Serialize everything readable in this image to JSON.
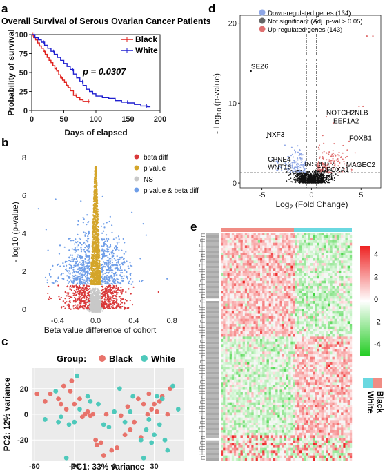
{
  "panels": {
    "a": {
      "label": "a",
      "chart_data": {
        "type": "line",
        "title": "Overall Survival of Serous Ovarian Cancer Patients",
        "xlabel": "Days of elapsed",
        "ylabel": "Probability of survival",
        "xlim": [
          0,
          200
        ],
        "ylim": [
          0,
          100
        ],
        "xticks": [
          "0",
          "50",
          "100",
          "150",
          "200"
        ],
        "yticks": [
          "0",
          "25",
          "50",
          "75",
          "100"
        ],
        "legend_position": "top-right",
        "annotation": "p = 0.0307",
        "series": [
          {
            "name": "Black",
            "color": "#e0221e",
            "x": [
              0,
              3,
              6,
              9,
              12,
              15,
              18,
              21,
              24,
              27,
              30,
              33,
              36,
              39,
              42,
              45,
              48,
              51,
              54,
              57,
              60,
              65,
              70,
              75,
              80,
              90
            ],
            "y": [
              100,
              96,
              93,
              89,
              85,
              82,
              78,
              74,
              70,
              66,
              63,
              59,
              55,
              52,
              47,
              43,
              40,
              37,
              33,
              30,
              26,
              20,
              17,
              14,
              12,
              12
            ]
          },
          {
            "name": "White",
            "color": "#1f1fd0",
            "x": [
              0,
              5,
              10,
              15,
              20,
              25,
              30,
              35,
              40,
              45,
              50,
              55,
              60,
              65,
              70,
              75,
              80,
              85,
              90,
              95,
              100,
              110,
              120,
              130,
              140,
              150,
              160,
              170,
              180,
              185
            ],
            "y": [
              100,
              96,
              93,
              90,
              86,
              82,
              78,
              74,
              70,
              66,
              62,
              58,
              54,
              48,
              43,
              38,
              33,
              28,
              25,
              22,
              19,
              17,
              16,
              13,
              11,
              10,
              8,
              6,
              5,
              5
            ]
          }
        ]
      }
    },
    "b": {
      "label": "b",
      "chart_data": {
        "type": "scatter",
        "xlabel": "Beta value difference of cohort",
        "ylabel": "- log10 (p-value)",
        "xlim": [
          -0.7,
          0.85
        ],
        "ylim": [
          -0.3,
          8
        ],
        "xticks": [
          -0.4,
          0.0,
          0.4,
          0.8
        ],
        "yticks": [
          0,
          2,
          4,
          6,
          8
        ],
        "legend_position": "top-right",
        "series": [
          {
            "name": "beta diff",
            "color": "#d9383a"
          },
          {
            "name": "p value",
            "color": "#d4a52a"
          },
          {
            "name": "NS",
            "color": "#c8c8c8"
          },
          {
            "name": "p value & beta diff",
            "color": "#6f9ee8"
          }
        ]
      }
    },
    "c": {
      "label": "c",
      "chart_data": {
        "type": "scatter",
        "xlabel": "PC1: 33% variance",
        "ylabel": "PC2: 12% variance",
        "xlim": [
          -62,
          52
        ],
        "ylim": [
          -36,
          36
        ],
        "xticks": [
          -60,
          -30,
          0,
          30
        ],
        "yticks": [
          -20,
          0,
          20
        ],
        "grid": true,
        "legend_title": "Group:",
        "legend_position": "top",
        "series": [
          {
            "name": "Black",
            "color": "#e8736b",
            "points": [
              [
                -58,
                16
              ],
              [
                -52,
                10
              ],
              [
                -48,
                16
              ],
              [
                -42,
                12
              ],
              [
                -38,
                22
              ],
              [
                -36,
                4
              ],
              [
                -33,
                18
              ],
              [
                -32,
                26
              ],
              [
                -30,
                8
              ],
              [
                -26,
                12
              ],
              [
                -22,
                0
              ],
              [
                -20,
                2
              ],
              [
                -18,
                -1
              ],
              [
                -16,
                0
              ],
              [
                -14,
                -20
              ],
              [
                -13,
                -24
              ],
              [
                -10,
                -22
              ],
              [
                -8,
                -32
              ],
              [
                -2,
                -28
              ],
              [
                2,
                -26
              ],
              [
                5,
                -1
              ],
              [
                10,
                6
              ],
              [
                12,
                -12
              ],
              [
                15,
                -6
              ],
              [
                18,
                12
              ],
              [
                22,
                8
              ],
              [
                25,
                0
              ],
              [
                26,
                16
              ],
              [
                28,
                4
              ],
              [
                30,
                8
              ],
              [
                32,
                2
              ],
              [
                34,
                10
              ],
              [
                36,
                14
              ],
              [
                40,
                0
              ],
              [
                42,
                20
              ],
              [
                8,
                -16
              ],
              [
                -6,
                0
              ],
              [
                20,
                -18
              ],
              [
                -24,
                -2
              ],
              [
                -40,
                8
              ]
            ]
          },
          {
            "name": "White",
            "color": "#4ec9bb",
            "points": [
              [
                -52,
                -4
              ],
              [
                -44,
                18
              ],
              [
                -42,
                -6
              ],
              [
                -40,
                -2
              ],
              [
                -34,
                -8
              ],
              [
                -30,
                -6
              ],
              [
                -28,
                30
              ],
              [
                -26,
                4
              ],
              [
                -18,
                10
              ],
              [
                -12,
                8
              ],
              [
                -8,
                -8
              ],
              [
                -4,
                -10
              ],
              [
                0,
                2
              ],
              [
                4,
                20
              ],
              [
                8,
                -6
              ],
              [
                12,
                2
              ],
              [
                14,
                14
              ],
              [
                20,
                -20
              ],
              [
                24,
                -12
              ],
              [
                26,
                -4
              ],
              [
                28,
                -22
              ],
              [
                30,
                -16
              ],
              [
                32,
                14
              ],
              [
                34,
                -8
              ],
              [
                36,
                12
              ],
              [
                38,
                -20
              ],
              [
                40,
                -28
              ],
              [
                44,
                22
              ],
              [
                48,
                4
              ],
              [
                22,
                -34
              ],
              [
                -20,
                14
              ],
              [
                -36,
                -34
              ]
            ]
          }
        ]
      }
    },
    "d": {
      "label": "d",
      "chart_data": {
        "type": "scatter",
        "xlabel": "Log2 (Fold Change)",
        "ylabel": "- Log10 (p-value)",
        "xlim": [
          -7.2,
          7
        ],
        "ylim": [
          -0.6,
          21
        ],
        "xticks": [
          -5,
          0,
          5
        ],
        "yticks": [
          0,
          10,
          20
        ],
        "legend_position": "top-left",
        "series": [
          {
            "name": "Down-regulated genes (134)",
            "color": "#8fa7e6"
          },
          {
            "name": "Not significant (Adj. p-val > 0.05)",
            "color": "#666666"
          },
          {
            "name": "Up-regulated genes (143)",
            "color": "#e07070"
          }
        ],
        "annotations": [
          {
            "text": "SEZ6",
            "x": -6.1,
            "y": 14.3
          },
          {
            "text": "NXF3",
            "x": -4.5,
            "y": 5.8
          },
          {
            "text": "CPNE4",
            "x": -4.4,
            "y": 2.7
          },
          {
            "text": "WNT16",
            "x": -4.4,
            "y": 1.7
          },
          {
            "text": "NOTCH2NLB",
            "x": 1.5,
            "y": 8.5
          },
          {
            "text": "EEF1A2",
            "x": 2.2,
            "y": 7.5
          },
          {
            "text": "FOXB1",
            "x": 3.8,
            "y": 5.3
          },
          {
            "text": "INSR",
            "x": -0.7,
            "y": 2.1
          },
          {
            "text": "LDR",
            "x": 0.9,
            "y": 2.1
          },
          {
            "text": "MAGEC2",
            "x": 3.5,
            "y": 2.0
          },
          {
            "text": "CD",
            "x": 0.5,
            "y": 1.4
          },
          {
            "text": "FOXA1",
            "x": 1.5,
            "y": 1.4
          }
        ]
      }
    },
    "e": {
      "label": "e",
      "chart_data": {
        "type": "heatmap",
        "color_scale": {
          "low": "#22cc22",
          "mid": "#ffffff",
          "high": "#ee2222",
          "ticks": [
            "4",
            "2",
            "0",
            "-2",
            "-4"
          ]
        },
        "legend_entries": [
          {
            "name": "Black",
            "color": "#f08c84"
          },
          {
            "name": "White",
            "color": "#6ad8e0"
          }
        ]
      }
    }
  }
}
